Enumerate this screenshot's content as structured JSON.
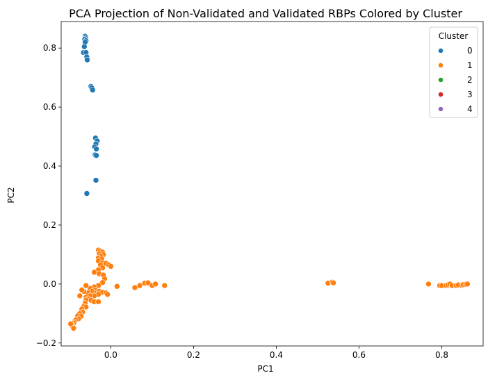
{
  "chart_data": {
    "type": "scatter",
    "title": "PCA Projection of Non-Validated and Validated RBPs Colored by Cluster",
    "xlabel": "PC1",
    "ylabel": "PC2",
    "xlim": [
      -0.12,
      0.9
    ],
    "ylim": [
      -0.21,
      0.89
    ],
    "xticks": [
      0.0,
      0.2,
      0.4,
      0.6,
      0.8
    ],
    "xtick_labels": [
      "0.0",
      "0.2",
      "0.4",
      "0.6",
      "0.8"
    ],
    "yticks": [
      -0.2,
      0.0,
      0.2,
      0.4,
      0.6,
      0.8
    ],
    "ytick_labels": [
      "−0.2",
      "0.0",
      "0.2",
      "0.4",
      "0.6",
      "0.8"
    ],
    "grid": false,
    "legend": {
      "title": "Cluster",
      "placement": "top-right",
      "entries": [
        {
          "label": "0",
          "color": "#1f77b4"
        },
        {
          "label": "1",
          "color": "#ff7f0e"
        },
        {
          "label": "2",
          "color": "#2ca02c"
        },
        {
          "label": "3",
          "color": "#d62728"
        },
        {
          "label": "4",
          "color": "#9467bd"
        }
      ]
    },
    "series": [
      {
        "name": "0",
        "color": "#1f77b4",
        "points": [
          [
            -0.062,
            0.84
          ],
          [
            -0.061,
            0.835
          ],
          [
            -0.063,
            0.83
          ],
          [
            -0.06,
            0.825
          ],
          [
            -0.062,
            0.82
          ],
          [
            -0.064,
            0.805
          ],
          [
            -0.066,
            0.785
          ],
          [
            -0.06,
            0.785
          ],
          [
            -0.058,
            0.77
          ],
          [
            -0.057,
            0.76
          ],
          [
            -0.048,
            0.67
          ],
          [
            -0.046,
            0.665
          ],
          [
            -0.044,
            0.658
          ],
          [
            -0.037,
            0.495
          ],
          [
            -0.033,
            0.485
          ],
          [
            -0.036,
            0.475
          ],
          [
            -0.039,
            0.465
          ],
          [
            -0.035,
            0.458
          ],
          [
            -0.038,
            0.438
          ],
          [
            -0.035,
            0.436
          ],
          [
            -0.036,
            0.352
          ],
          [
            -0.058,
            0.307
          ]
        ]
      },
      {
        "name": "1",
        "color": "#ff7f0e",
        "points": [
          [
            -0.03,
            0.115
          ],
          [
            -0.025,
            0.112
          ],
          [
            -0.02,
            0.108
          ],
          [
            -0.028,
            0.102
          ],
          [
            -0.018,
            0.1
          ],
          [
            -0.025,
            0.095
          ],
          [
            -0.03,
            0.088
          ],
          [
            -0.022,
            0.085
          ],
          [
            -0.03,
            0.078
          ],
          [
            -0.02,
            0.072
          ],
          [
            -0.025,
            0.065
          ],
          [
            -0.012,
            0.07
          ],
          [
            -0.005,
            0.065
          ],
          [
            0.0,
            0.06
          ],
          [
            -0.02,
            0.055
          ],
          [
            -0.03,
            0.048
          ],
          [
            -0.04,
            0.04
          ],
          [
            -0.028,
            0.035
          ],
          [
            -0.018,
            0.03
          ],
          [
            -0.015,
            0.018
          ],
          [
            -0.02,
            0.005
          ],
          [
            -0.03,
            -0.005
          ],
          [
            -0.04,
            -0.01
          ],
          [
            -0.05,
            -0.015
          ],
          [
            -0.06,
            -0.005
          ],
          [
            -0.038,
            -0.02
          ],
          [
            -0.045,
            -0.025
          ],
          [
            -0.055,
            -0.03
          ],
          [
            -0.035,
            -0.03
          ],
          [
            -0.028,
            -0.025
          ],
          [
            -0.02,
            -0.028
          ],
          [
            -0.012,
            -0.03
          ],
          [
            -0.008,
            -0.035
          ],
          [
            -0.03,
            -0.035
          ],
          [
            -0.04,
            -0.04
          ],
          [
            -0.05,
            -0.04
          ],
          [
            -0.06,
            -0.045
          ],
          [
            -0.055,
            -0.05
          ],
          [
            -0.048,
            -0.055
          ],
          [
            -0.04,
            -0.06
          ],
          [
            -0.03,
            -0.06
          ],
          [
            -0.06,
            -0.055
          ],
          [
            -0.065,
            -0.025
          ],
          [
            -0.07,
            -0.02
          ],
          [
            -0.075,
            -0.04
          ],
          [
            -0.062,
            -0.065
          ],
          [
            -0.065,
            -0.075
          ],
          [
            -0.06,
            -0.078
          ],
          [
            -0.07,
            -0.085
          ],
          [
            -0.068,
            -0.095
          ],
          [
            -0.075,
            -0.1
          ],
          [
            -0.08,
            -0.108
          ],
          [
            -0.072,
            -0.11
          ],
          [
            -0.078,
            -0.118
          ],
          [
            -0.085,
            -0.122
          ],
          [
            -0.088,
            -0.128
          ],
          [
            -0.09,
            -0.133
          ],
          [
            -0.095,
            -0.136
          ],
          [
            -0.093,
            -0.14
          ],
          [
            -0.092,
            -0.145
          ],
          [
            -0.09,
            -0.15
          ],
          [
            -0.097,
            -0.135
          ],
          [
            0.015,
            -0.008
          ],
          [
            0.058,
            -0.012
          ],
          [
            0.07,
            -0.005
          ],
          [
            0.082,
            0.003
          ],
          [
            0.09,
            0.004
          ],
          [
            0.1,
            -0.005
          ],
          [
            0.108,
            0.0
          ],
          [
            0.13,
            -0.005
          ],
          [
            0.525,
            0.003
          ],
          [
            0.535,
            0.006
          ],
          [
            0.538,
            0.004
          ],
          [
            0.768,
            0.0
          ],
          [
            0.795,
            -0.005
          ],
          [
            0.8,
            -0.005
          ],
          [
            0.81,
            -0.005
          ],
          [
            0.815,
            -0.003
          ],
          [
            0.82,
            0.0
          ],
          [
            0.825,
            -0.005
          ],
          [
            0.835,
            -0.005
          ],
          [
            0.84,
            -0.003
          ],
          [
            0.848,
            -0.004
          ],
          [
            0.852,
            -0.002
          ],
          [
            0.858,
            -0.001
          ],
          [
            0.862,
            0.0
          ]
        ]
      },
      {
        "name": "2",
        "color": "#2ca02c",
        "points": []
      },
      {
        "name": "3",
        "color": "#d62728",
        "points": []
      },
      {
        "name": "4",
        "color": "#9467bd",
        "points": []
      }
    ]
  }
}
